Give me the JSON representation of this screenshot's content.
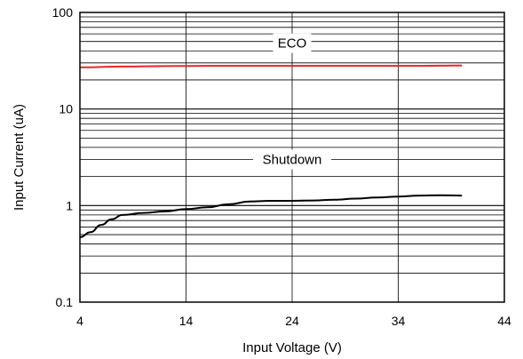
{
  "chart_data": {
    "type": "line",
    "xlabel": "Input Voltage (V)",
    "ylabel": "Input Current (uA)",
    "xlim": [
      4,
      44
    ],
    "ylim": [
      0.1,
      100
    ],
    "yscale": "log",
    "grid": true,
    "x_ticks": [
      "4",
      "14",
      "24",
      "34",
      "44"
    ],
    "y_ticks": [
      "0.1",
      "1",
      "10",
      "100"
    ],
    "colors": {
      "ECO": "#e8262b",
      "Shutdown": "#000000",
      "grid": "#000000"
    },
    "series": [
      {
        "name": "ECO",
        "x": [
          4,
          8,
          12,
          16,
          20,
          24,
          28,
          32,
          36,
          40
        ],
        "y": [
          27,
          27.5,
          27.8,
          28,
          28,
          28,
          28,
          28,
          28,
          28.2
        ]
      },
      {
        "name": "Shutdown",
        "x": [
          4,
          5,
          6,
          7,
          8,
          10,
          12,
          14,
          16,
          18,
          20,
          22,
          24,
          26,
          28,
          30,
          32,
          34,
          36,
          38,
          40
        ],
        "y": [
          0.47,
          0.53,
          0.63,
          0.72,
          0.8,
          0.84,
          0.87,
          0.92,
          0.96,
          1.03,
          1.1,
          1.12,
          1.12,
          1.13,
          1.15,
          1.18,
          1.21,
          1.24,
          1.27,
          1.28,
          1.27
        ]
      }
    ]
  }
}
